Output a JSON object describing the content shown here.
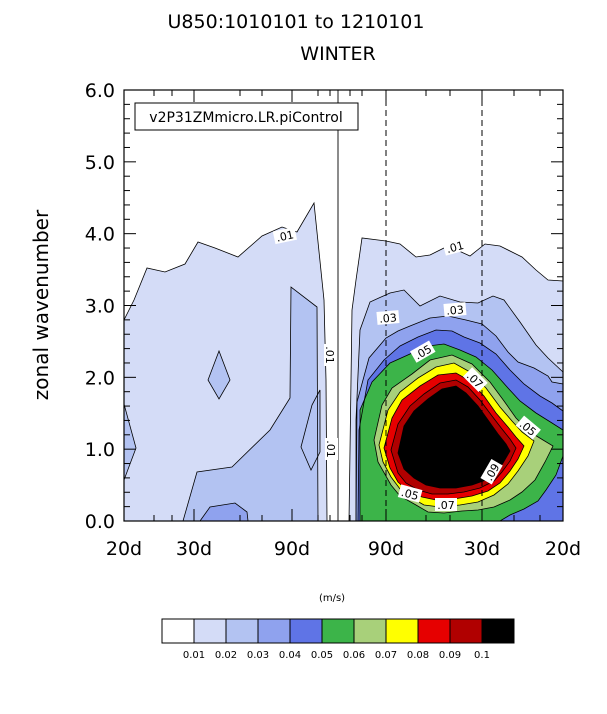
{
  "chart_data": {
    "type": "contour",
    "title": "U850:1010101 to 1210101",
    "subtitle": "WINTER",
    "ylabel": "zonal wavenumber",
    "xlabel": "",
    "ylim": [
      0.0,
      6.0
    ],
    "y_ticks": [
      "0.0",
      "1.0",
      "2.0",
      "3.0",
      "4.0",
      "5.0",
      "6.0"
    ],
    "x_ticks": [
      "20d",
      "30d",
      "90d",
      "90d",
      "30d",
      "20d"
    ],
    "case_label": "v2P31ZMmicro.LR.piControl",
    "units": "(m/s)",
    "levels": [
      "0.01",
      "0.02",
      "0.03",
      "0.04",
      "0.05",
      "0.06",
      "0.07",
      "0.08",
      "0.09",
      "0.1"
    ],
    "colors": [
      "#ffffff",
      "#d4dcf7",
      "#b3c3f2",
      "#8fa2ee",
      "#5f74e6",
      "#3cb449",
      "#a8d07a",
      "#ffff00",
      "#e60000",
      "#b00000",
      "#000000"
    ],
    "contour_labels": [
      ".01",
      ".01",
      ".01",
      ".01",
      ".03",
      ".03",
      ".05",
      ".05",
      ".05",
      ".07",
      ".07",
      ".09"
    ],
    "west_max_wavenumber": 4.4,
    "east_peak_value": 0.1,
    "east_peak_wavenumber": 1.2
  }
}
